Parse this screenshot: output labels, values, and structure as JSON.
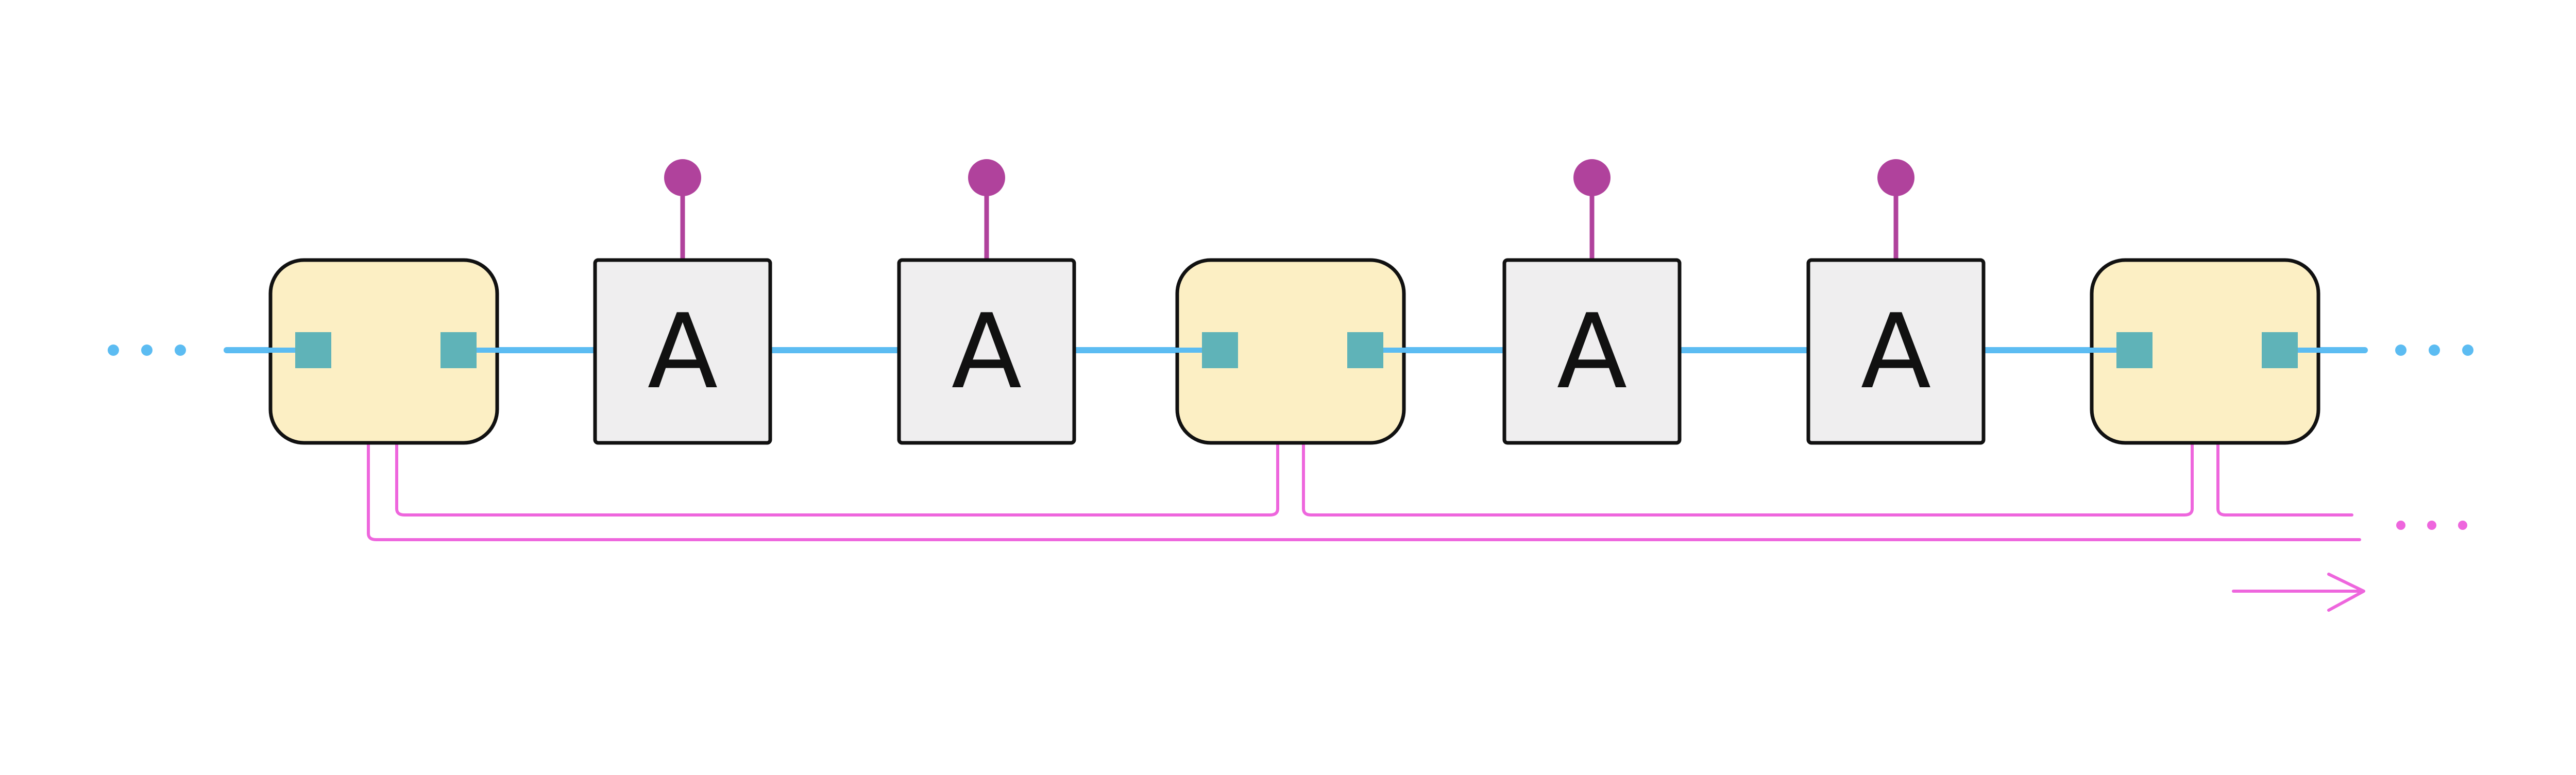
{
  "diagram": {
    "block_label": "A",
    "colors": {
      "background": "#ffffff",
      "line_blue": "#5cbcf2",
      "port_teal": "#5fb3b8",
      "block_fill": "#efeeef",
      "cell_fill": "#fcefc4",
      "stroke": "#111111",
      "pin_purple": "#b0429c",
      "bus_pink": "#ee66dd"
    },
    "elements": [
      {
        "kind": "cell"
      },
      {
        "kind": "block"
      },
      {
        "kind": "block"
      },
      {
        "kind": "cell"
      },
      {
        "kind": "block"
      },
      {
        "kind": "block"
      },
      {
        "kind": "cell"
      }
    ],
    "continuation": {
      "left": "ellipsis-dots",
      "right": "ellipsis-dots",
      "bus": "ellipsis-dots"
    },
    "direction_arrow": "right"
  }
}
